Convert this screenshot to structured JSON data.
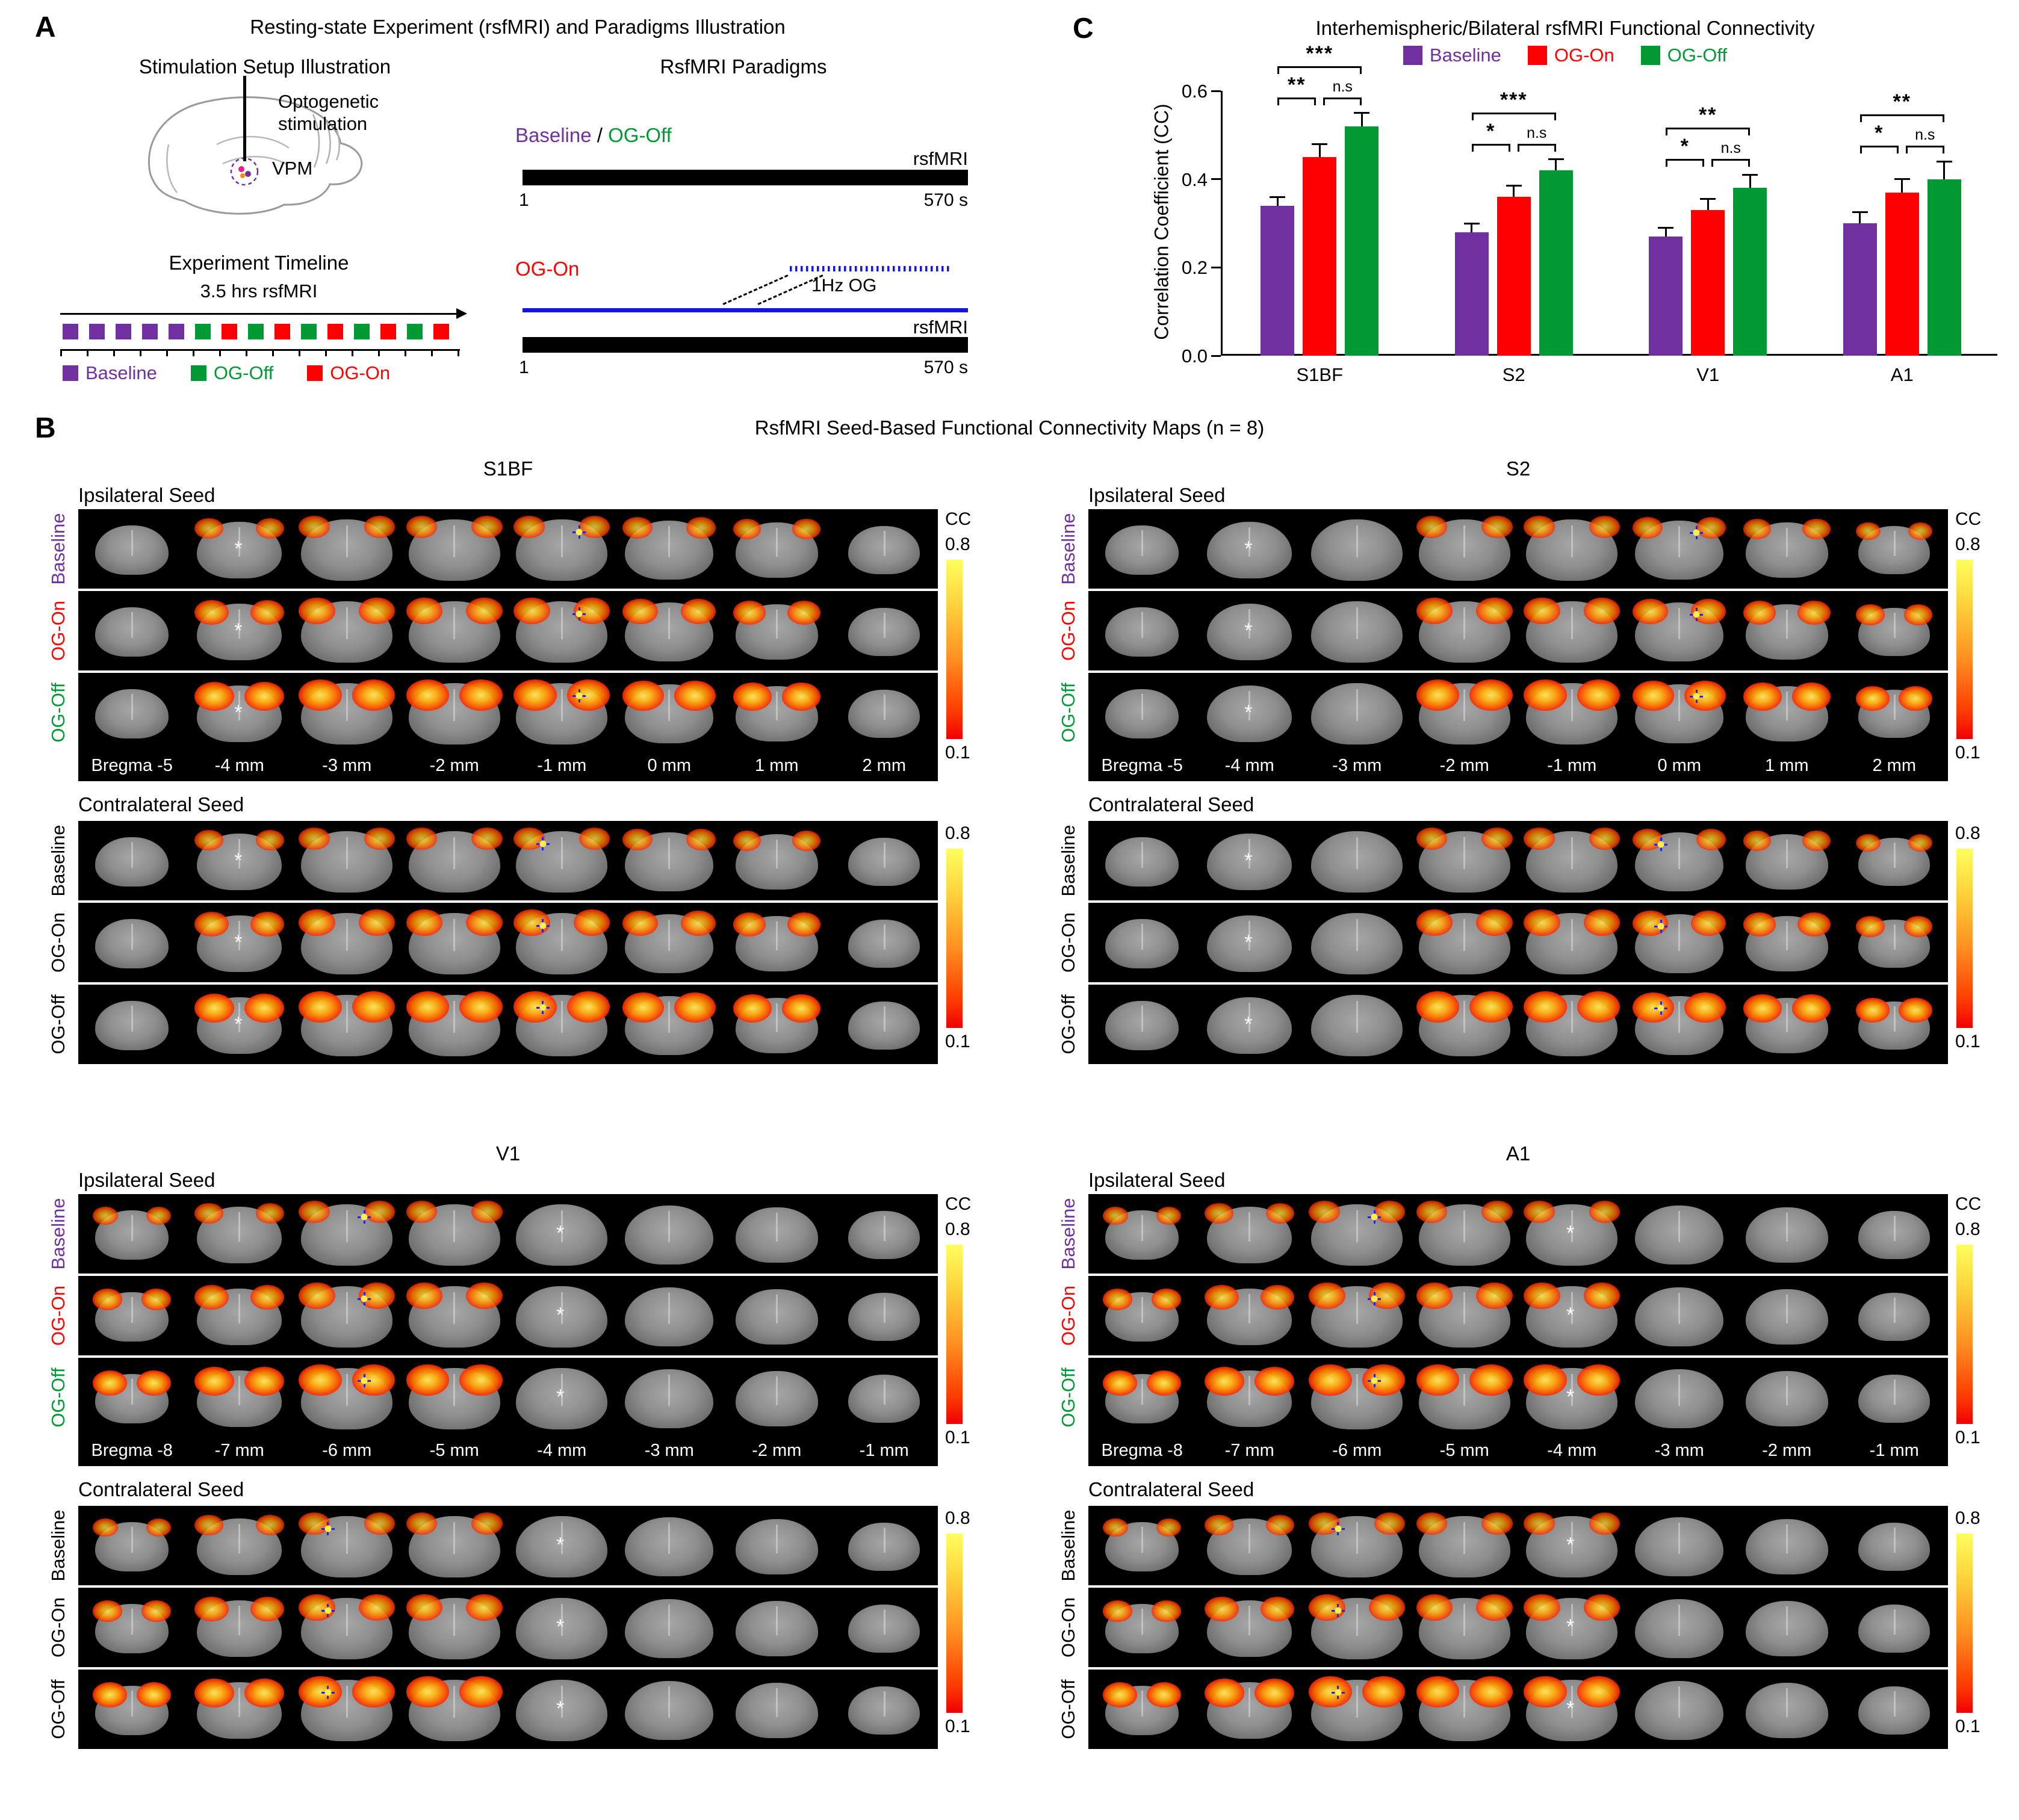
{
  "colors": {
    "baseline": "#7030A0",
    "og_on": "#FF0000",
    "og_off": "#009933",
    "stim_blue": "#1414E6"
  },
  "panelA": {
    "label": "A",
    "title": "Resting-state Experiment (rsfMRI) and Paradigms Illustration",
    "setup_heading": "Stimulation Setup Illustration",
    "opto_label_line1": "Optogenetic",
    "opto_label_line2": "stimulation",
    "vpm_label": "VPM",
    "timeline_heading": "Experiment Timeline",
    "timeline_duration": "3.5 hrs rsfMRI",
    "timeline_blocks": [
      "baseline",
      "baseline",
      "baseline",
      "baseline",
      "baseline",
      "og_off",
      "og_on",
      "og_off",
      "og_on",
      "og_off",
      "og_on",
      "og_off",
      "og_on",
      "og_off",
      "og_on"
    ],
    "timeline_legend": [
      {
        "label": "Baseline",
        "color_key": "baseline"
      },
      {
        "label": "OG-Off",
        "color_key": "og_off"
      },
      {
        "label": "OG-On",
        "color_key": "og_on"
      }
    ],
    "paradigms_heading": "RsfMRI Paradigms",
    "paradigm1": {
      "label_baseline": "Baseline",
      "label_sep": " / ",
      "label_ogoff": "OG-Off",
      "rsfmri": "rsfMRI",
      "t0": "1",
      "t1": "570 s"
    },
    "paradigm2": {
      "label": "OG-On",
      "stim_label": "1Hz OG",
      "rsfmri": "rsfMRI",
      "t0": "1",
      "t1": "570 s"
    }
  },
  "panelC": {
    "label": "C",
    "title": "Interhemispheric/Bilateral rsfMRI Functional Connectivity"
  },
  "chart_data": {
    "type": "bar",
    "title": "Interhemispheric/Bilateral rsfMRI Functional Connectivity",
    "ylabel": "Correlation Coefficient (CC)",
    "xlabel": "",
    "ylim": [
      0,
      0.6
    ],
    "yticks": [
      "0.0",
      "0.2",
      "0.4",
      "0.6"
    ],
    "legend_position": "top",
    "categories": [
      "S1BF",
      "S2",
      "V1",
      "A1"
    ],
    "series": [
      {
        "name": "Baseline",
        "color": "#7030A0",
        "values": [
          0.34,
          0.28,
          0.27,
          0.3
        ],
        "errors": [
          0.02,
          0.02,
          0.02,
          0.025
        ]
      },
      {
        "name": "OG-On",
        "color": "#FF0000",
        "values": [
          0.45,
          0.36,
          0.33,
          0.37
        ],
        "errors": [
          0.03,
          0.025,
          0.025,
          0.03
        ]
      },
      {
        "name": "OG-Off",
        "color": "#009933",
        "values": [
          0.52,
          0.42,
          0.38,
          0.4
        ],
        "errors": [
          0.03,
          0.025,
          0.03,
          0.04
        ]
      }
    ],
    "significance": [
      {
        "category": "S1BF",
        "pair_left": "**",
        "pair_top": "***",
        "pair_right": "n.s"
      },
      {
        "category": "S2",
        "pair_left": "*",
        "pair_top": "***",
        "pair_right": "n.s"
      },
      {
        "category": "V1",
        "pair_left": "*",
        "pair_top": "**",
        "pair_right": "n.s"
      },
      {
        "category": "A1",
        "pair_left": "*",
        "pair_top": "**",
        "pair_right": "n.s"
      }
    ]
  },
  "panelB": {
    "label": "B",
    "title": "RsfMRI Seed-Based Functional Connectivity Maps (n = 8)",
    "ipsi_heading": "Ipsilateral Seed",
    "contra_heading": "Contralateral Seed",
    "row_labels": [
      {
        "label": "Baseline",
        "color_key": "baseline"
      },
      {
        "label": "OG-On",
        "color_key": "og_on"
      },
      {
        "label": "OG-Off",
        "color_key": "og_off"
      }
    ],
    "colorbar": {
      "label": "CC",
      "max": "0.8",
      "min": "0.1"
    },
    "quadrants": [
      {
        "title": "S1BF",
        "slice_labels": [
          "Bregma -5",
          "-4 mm",
          "-3 mm",
          "-2 mm",
          "-1 mm",
          "0 mm",
          "1 mm",
          "2 mm"
        ],
        "active_cols": [
          1,
          2,
          3,
          4,
          5,
          6
        ],
        "asterisk_col": 1,
        "seed_col": 4
      },
      {
        "title": "S2",
        "slice_labels": [
          "Bregma -5",
          "-4 mm",
          "-3 mm",
          "-2 mm",
          "-1 mm",
          "0 mm",
          "1 mm",
          "2 mm"
        ],
        "active_cols": [
          3,
          4,
          5,
          6,
          7
        ],
        "asterisk_col": 1,
        "seed_col": 5
      },
      {
        "title": "V1",
        "slice_labels": [
          "Bregma -8",
          "-7 mm",
          "-6 mm",
          "-5 mm",
          "-4 mm",
          "-3 mm",
          "-2 mm",
          "-1 mm"
        ],
        "active_cols": [
          0,
          1,
          2,
          3
        ],
        "asterisk_col": 4,
        "seed_col": 2
      },
      {
        "title": "A1",
        "slice_labels": [
          "Bregma -8",
          "-7 mm",
          "-6 mm",
          "-5 mm",
          "-4 mm",
          "-3 mm",
          "-2 mm",
          "-1 mm"
        ],
        "active_cols": [
          0,
          1,
          2,
          3,
          4
        ],
        "asterisk_col": 4,
        "seed_col": 2
      }
    ]
  }
}
